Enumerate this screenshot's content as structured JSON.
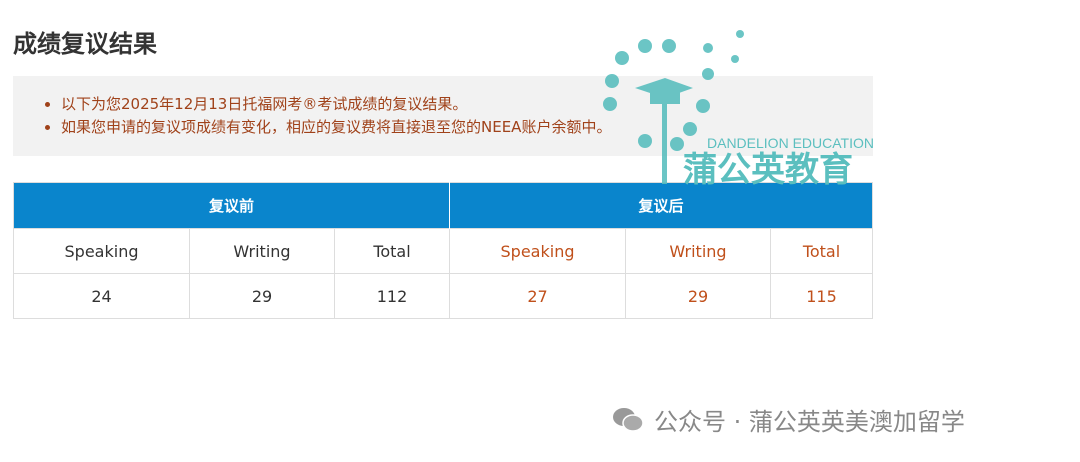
{
  "title": "成绩复议结果",
  "notices": [
    "以下为您2025年12月13日托福网考®考试成绩的复议结果。",
    "如果您申请的复议项成绩有变化，相应的复议费将直接退至您的NEEA账户余额中。"
  ],
  "table": {
    "groups": [
      "复议前",
      "复议后"
    ],
    "headers": [
      "Speaking",
      "Writing",
      "Total",
      "Speaking",
      "Writing",
      "Total"
    ],
    "values": [
      "24",
      "29",
      "112",
      "27",
      "29",
      "115"
    ]
  },
  "watermark": {
    "logo_en": "DANDELION EDUCATION",
    "logo_cn": "蒲公英教育",
    "footer": "公众号 · 蒲公英英美澳加留学"
  },
  "colors": {
    "header": "#0a85cc",
    "accent": "#c0501b",
    "logo": "#5bbfbf"
  }
}
